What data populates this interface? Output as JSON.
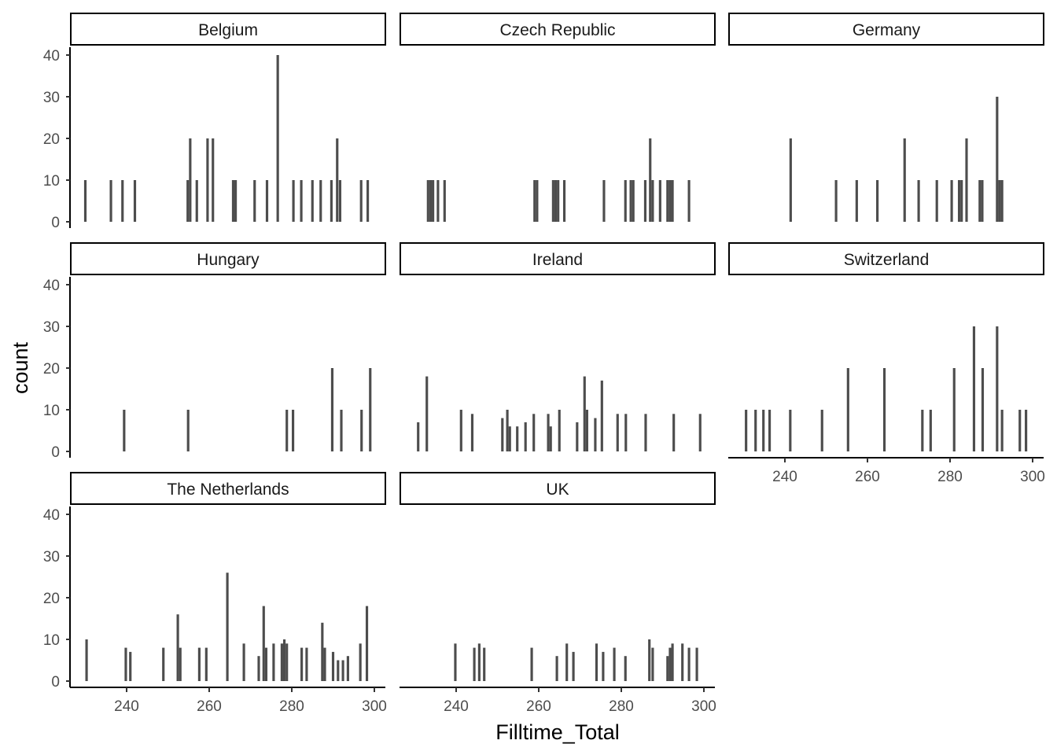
{
  "chart_data": {
    "type": "bar",
    "chart_kind": "faceted histogram",
    "xlabel": "Filltime_Total",
    "ylabel": "count",
    "xlim": [
      226,
      302
    ],
    "ylim": [
      0,
      42
    ],
    "x_ticks": [
      240,
      260,
      280,
      300
    ],
    "y_ticks": [
      0,
      10,
      20,
      30,
      40
    ],
    "grid": false,
    "bar_color": "#4d4d4d",
    "bin_width": 0.6,
    "facets": [
      {
        "name": "Belgium",
        "x_axis_shown": false,
        "bars": [
          {
            "x": 230,
            "count": 10
          },
          {
            "x": 236.2,
            "count": 10
          },
          {
            "x": 239,
            "count": 10
          },
          {
            "x": 242,
            "count": 10
          },
          {
            "x": 254.8,
            "count": 10
          },
          {
            "x": 255.4,
            "count": 20
          },
          {
            "x": 257,
            "count": 10
          },
          {
            "x": 259.6,
            "count": 20
          },
          {
            "x": 260.9,
            "count": 20
          },
          {
            "x": 265.8,
            "count": 10
          },
          {
            "x": 266.4,
            "count": 10
          },
          {
            "x": 271,
            "count": 10
          },
          {
            "x": 274,
            "count": 10
          },
          {
            "x": 276.6,
            "count": 40
          },
          {
            "x": 280.4,
            "count": 10
          },
          {
            "x": 282.3,
            "count": 10
          },
          {
            "x": 285,
            "count": 10
          },
          {
            "x": 287,
            "count": 10
          },
          {
            "x": 289.6,
            "count": 10
          },
          {
            "x": 291,
            "count": 20
          },
          {
            "x": 291.7,
            "count": 10
          },
          {
            "x": 296.8,
            "count": 10
          },
          {
            "x": 298.4,
            "count": 10
          }
        ]
      },
      {
        "name": "Czech Republic",
        "x_axis_shown": false,
        "bars": [
          {
            "x": 233.2,
            "count": 10
          },
          {
            "x": 233.8,
            "count": 10
          },
          {
            "x": 234.4,
            "count": 10
          },
          {
            "x": 235.6,
            "count": 10
          },
          {
            "x": 237.2,
            "count": 10
          },
          {
            "x": 259,
            "count": 10
          },
          {
            "x": 259.6,
            "count": 10
          },
          {
            "x": 263.5,
            "count": 10
          },
          {
            "x": 264.1,
            "count": 10
          },
          {
            "x": 264.7,
            "count": 10
          },
          {
            "x": 266.2,
            "count": 10
          },
          {
            "x": 275.8,
            "count": 10
          },
          {
            "x": 281,
            "count": 10
          },
          {
            "x": 282.3,
            "count": 10
          },
          {
            "x": 282.9,
            "count": 10
          },
          {
            "x": 285.8,
            "count": 10
          },
          {
            "x": 287,
            "count": 20
          },
          {
            "x": 287.6,
            "count": 10
          },
          {
            "x": 289.4,
            "count": 10
          },
          {
            "x": 291.2,
            "count": 10
          },
          {
            "x": 291.8,
            "count": 10
          },
          {
            "x": 292.4,
            "count": 10
          },
          {
            "x": 296.4,
            "count": 10
          }
        ]
      },
      {
        "name": "Germany",
        "x_axis_shown": false,
        "bars": [
          {
            "x": 241.4,
            "count": 20
          },
          {
            "x": 252.4,
            "count": 10
          },
          {
            "x": 257.4,
            "count": 10
          },
          {
            "x": 262.4,
            "count": 10
          },
          {
            "x": 269,
            "count": 20
          },
          {
            "x": 272.4,
            "count": 10
          },
          {
            "x": 276.8,
            "count": 10
          },
          {
            "x": 280.4,
            "count": 10
          },
          {
            "x": 282.2,
            "count": 10
          },
          {
            "x": 282.8,
            "count": 10
          },
          {
            "x": 284,
            "count": 20
          },
          {
            "x": 287.2,
            "count": 10
          },
          {
            "x": 287.8,
            "count": 10
          },
          {
            "x": 291.4,
            "count": 30
          },
          {
            "x": 292,
            "count": 10
          },
          {
            "x": 292.6,
            "count": 10
          }
        ]
      },
      {
        "name": "Hungary",
        "x_axis_shown": false,
        "bars": [
          {
            "x": 239.4,
            "count": 10
          },
          {
            "x": 254.9,
            "count": 10
          },
          {
            "x": 278.8,
            "count": 10
          },
          {
            "x": 280.3,
            "count": 10
          },
          {
            "x": 289.8,
            "count": 20
          },
          {
            "x": 292,
            "count": 10
          },
          {
            "x": 296.9,
            "count": 10
          },
          {
            "x": 299,
            "count": 20
          }
        ]
      },
      {
        "name": "Ireland",
        "x_axis_shown": false,
        "bars": [
          {
            "x": 230.8,
            "count": 7
          },
          {
            "x": 232.9,
            "count": 18
          },
          {
            "x": 241.2,
            "count": 10
          },
          {
            "x": 243.9,
            "count": 9
          },
          {
            "x": 251.2,
            "count": 8
          },
          {
            "x": 252.4,
            "count": 10
          },
          {
            "x": 253,
            "count": 6
          },
          {
            "x": 254.8,
            "count": 6
          },
          {
            "x": 256.8,
            "count": 7
          },
          {
            "x": 258.8,
            "count": 9
          },
          {
            "x": 262.3,
            "count": 9
          },
          {
            "x": 262.9,
            "count": 6
          },
          {
            "x": 265,
            "count": 10
          },
          {
            "x": 269.3,
            "count": 7
          },
          {
            "x": 271.1,
            "count": 18
          },
          {
            "x": 271.7,
            "count": 10
          },
          {
            "x": 273.7,
            "count": 8
          },
          {
            "x": 275.3,
            "count": 17
          },
          {
            "x": 279.1,
            "count": 9
          },
          {
            "x": 281.1,
            "count": 9
          },
          {
            "x": 285.9,
            "count": 9
          },
          {
            "x": 292.7,
            "count": 9
          },
          {
            "x": 299.1,
            "count": 9
          }
        ]
      },
      {
        "name": "Switzerland",
        "x_axis_shown": true,
        "bars": [
          {
            "x": 230.6,
            "count": 10
          },
          {
            "x": 232.9,
            "count": 10
          },
          {
            "x": 234.8,
            "count": 10
          },
          {
            "x": 236.3,
            "count": 10
          },
          {
            "x": 241.3,
            "count": 10
          },
          {
            "x": 249,
            "count": 10
          },
          {
            "x": 255.3,
            "count": 20
          },
          {
            "x": 264.1,
            "count": 20
          },
          {
            "x": 273.3,
            "count": 10
          },
          {
            "x": 275.3,
            "count": 10
          },
          {
            "x": 281,
            "count": 20
          },
          {
            "x": 285.8,
            "count": 30
          },
          {
            "x": 287.9,
            "count": 20
          },
          {
            "x": 291.4,
            "count": 30
          },
          {
            "x": 292.6,
            "count": 10
          },
          {
            "x": 296.9,
            "count": 10
          },
          {
            "x": 298.4,
            "count": 10
          }
        ]
      },
      {
        "name": "The Netherlands",
        "x_axis_shown": true,
        "bars": [
          {
            "x": 230.3,
            "count": 10
          },
          {
            "x": 239.8,
            "count": 8
          },
          {
            "x": 240.9,
            "count": 7
          },
          {
            "x": 248.9,
            "count": 8
          },
          {
            "x": 252.4,
            "count": 16
          },
          {
            "x": 253,
            "count": 8
          },
          {
            "x": 257.6,
            "count": 8
          },
          {
            "x": 259.3,
            "count": 8
          },
          {
            "x": 264.4,
            "count": 26
          },
          {
            "x": 268.4,
            "count": 9
          },
          {
            "x": 272,
            "count": 6
          },
          {
            "x": 273.2,
            "count": 18
          },
          {
            "x": 273.8,
            "count": 8
          },
          {
            "x": 275.6,
            "count": 9
          },
          {
            "x": 277.6,
            "count": 9
          },
          {
            "x": 278.2,
            "count": 10
          },
          {
            "x": 278.8,
            "count": 9
          },
          {
            "x": 282.4,
            "count": 8
          },
          {
            "x": 283.6,
            "count": 8
          },
          {
            "x": 287.4,
            "count": 14
          },
          {
            "x": 288,
            "count": 8
          },
          {
            "x": 290,
            "count": 7
          },
          {
            "x": 291.2,
            "count": 5
          },
          {
            "x": 292.4,
            "count": 5
          },
          {
            "x": 293.6,
            "count": 6
          },
          {
            "x": 296.6,
            "count": 9
          },
          {
            "x": 298.2,
            "count": 18
          }
        ]
      },
      {
        "name": "UK",
        "x_axis_shown": true,
        "bars": [
          {
            "x": 239.8,
            "count": 9
          },
          {
            "x": 244.4,
            "count": 8
          },
          {
            "x": 245.6,
            "count": 9
          },
          {
            "x": 246.8,
            "count": 8
          },
          {
            "x": 258.3,
            "count": 8
          },
          {
            "x": 264.4,
            "count": 6
          },
          {
            "x": 266.8,
            "count": 9
          },
          {
            "x": 268.4,
            "count": 7
          },
          {
            "x": 274,
            "count": 9
          },
          {
            "x": 275.6,
            "count": 7
          },
          {
            "x": 278.3,
            "count": 8
          },
          {
            "x": 281,
            "count": 6
          },
          {
            "x": 286.8,
            "count": 10
          },
          {
            "x": 287.6,
            "count": 8
          },
          {
            "x": 291.2,
            "count": 6
          },
          {
            "x": 291.8,
            "count": 8
          },
          {
            "x": 292.4,
            "count": 9
          },
          {
            "x": 294.8,
            "count": 9
          },
          {
            "x": 296.4,
            "count": 8
          },
          {
            "x": 298.3,
            "count": 8
          }
        ]
      }
    ]
  }
}
